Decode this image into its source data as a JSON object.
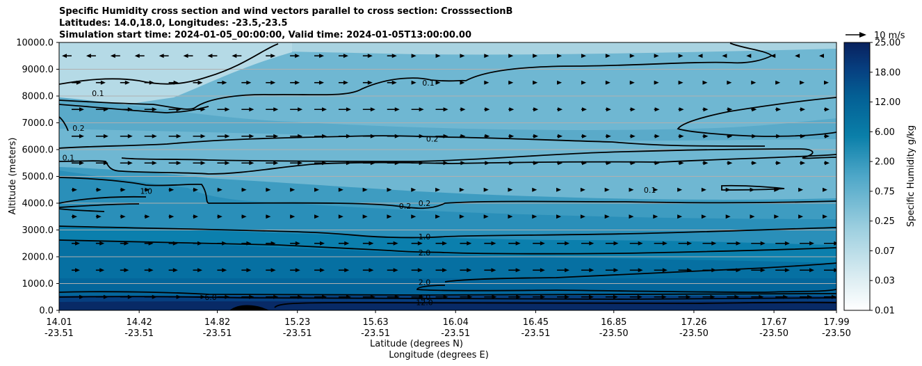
{
  "chart_data": {
    "type": "contour",
    "title_lines": [
      "Specific Humidity cross section and wind vectors parallel to cross section: CrosssectionB",
      "Latitudes: 14.0,18.0, Longitudes: -23.5,-23.5",
      "Simulation start time: 2024-01-05_00:00:00, Valid time: 2024-01-05T13:00:00.00"
    ],
    "ylabel": "Altitude (meters)",
    "xlabel_lat": "Latitude (degrees N)",
    "xlabel_lon": "Longitude (degrees E)",
    "ylim": [
      0,
      10000
    ],
    "yticks": [
      "0.0",
      "1000.0",
      "2000.0",
      "3000.0",
      "4000.0",
      "5000.0",
      "6000.0",
      "7000.0",
      "8000.0",
      "9000.0",
      "10000.0"
    ],
    "xticks_lat": [
      "14.01",
      "14.42",
      "14.82",
      "15.23",
      "15.63",
      "16.04",
      "16.45",
      "16.85",
      "17.26",
      "17.67",
      "17.99"
    ],
    "xticks_lon": [
      "-23.51",
      "-23.51",
      "-23.51",
      "-23.51",
      "-23.51",
      "-23.51",
      "-23.51",
      "-23.50",
      "-23.50",
      "-23.50",
      "-23.50"
    ],
    "colorbar": {
      "label": "Specific Humidity g/kg",
      "ticks": [
        "0.01",
        "0.03",
        "0.07",
        "0.25",
        "0.75",
        "2.00",
        "6.00",
        "12.00",
        "18.00",
        "25.00"
      ]
    },
    "quiver_key": "10 m/s",
    "contour_labels": [
      {
        "text": "0.1",
        "x_frac": 0.05,
        "alt": 8100
      },
      {
        "text": "0.1",
        "x_frac": 0.475,
        "alt": 8500
      },
      {
        "text": "0.2",
        "x_frac": 0.48,
        "alt": 6400
      },
      {
        "text": "0.2",
        "x_frac": 0.47,
        "alt": 4000
      },
      {
        "text": "0.2",
        "x_frac": 0.445,
        "alt": 3900
      },
      {
        "text": "1.0",
        "x_frac": 0.47,
        "alt": 2750
      },
      {
        "text": "2.0",
        "x_frac": 0.47,
        "alt": 2150
      },
      {
        "text": "2.0",
        "x_frac": 0.47,
        "alt": 1050
      },
      {
        "text": "4.0",
        "x_frac": 0.47,
        "alt": 500
      },
      {
        "text": "12.0",
        "x_frac": 0.47,
        "alt": 300
      },
      {
        "text": "6.0",
        "x_frac": 0.195,
        "alt": 500
      },
      {
        "text": "0.1",
        "x_frac": 0.76,
        "alt": 4500
      },
      {
        "text": "1.0",
        "x_frac": 0.112,
        "alt": 4450
      },
      {
        "text": "0.2",
        "x_frac": 0.025,
        "alt": 6800
      },
      {
        "text": "0.1",
        "x_frac": 0.012,
        "alt": 5700
      }
    ]
  }
}
